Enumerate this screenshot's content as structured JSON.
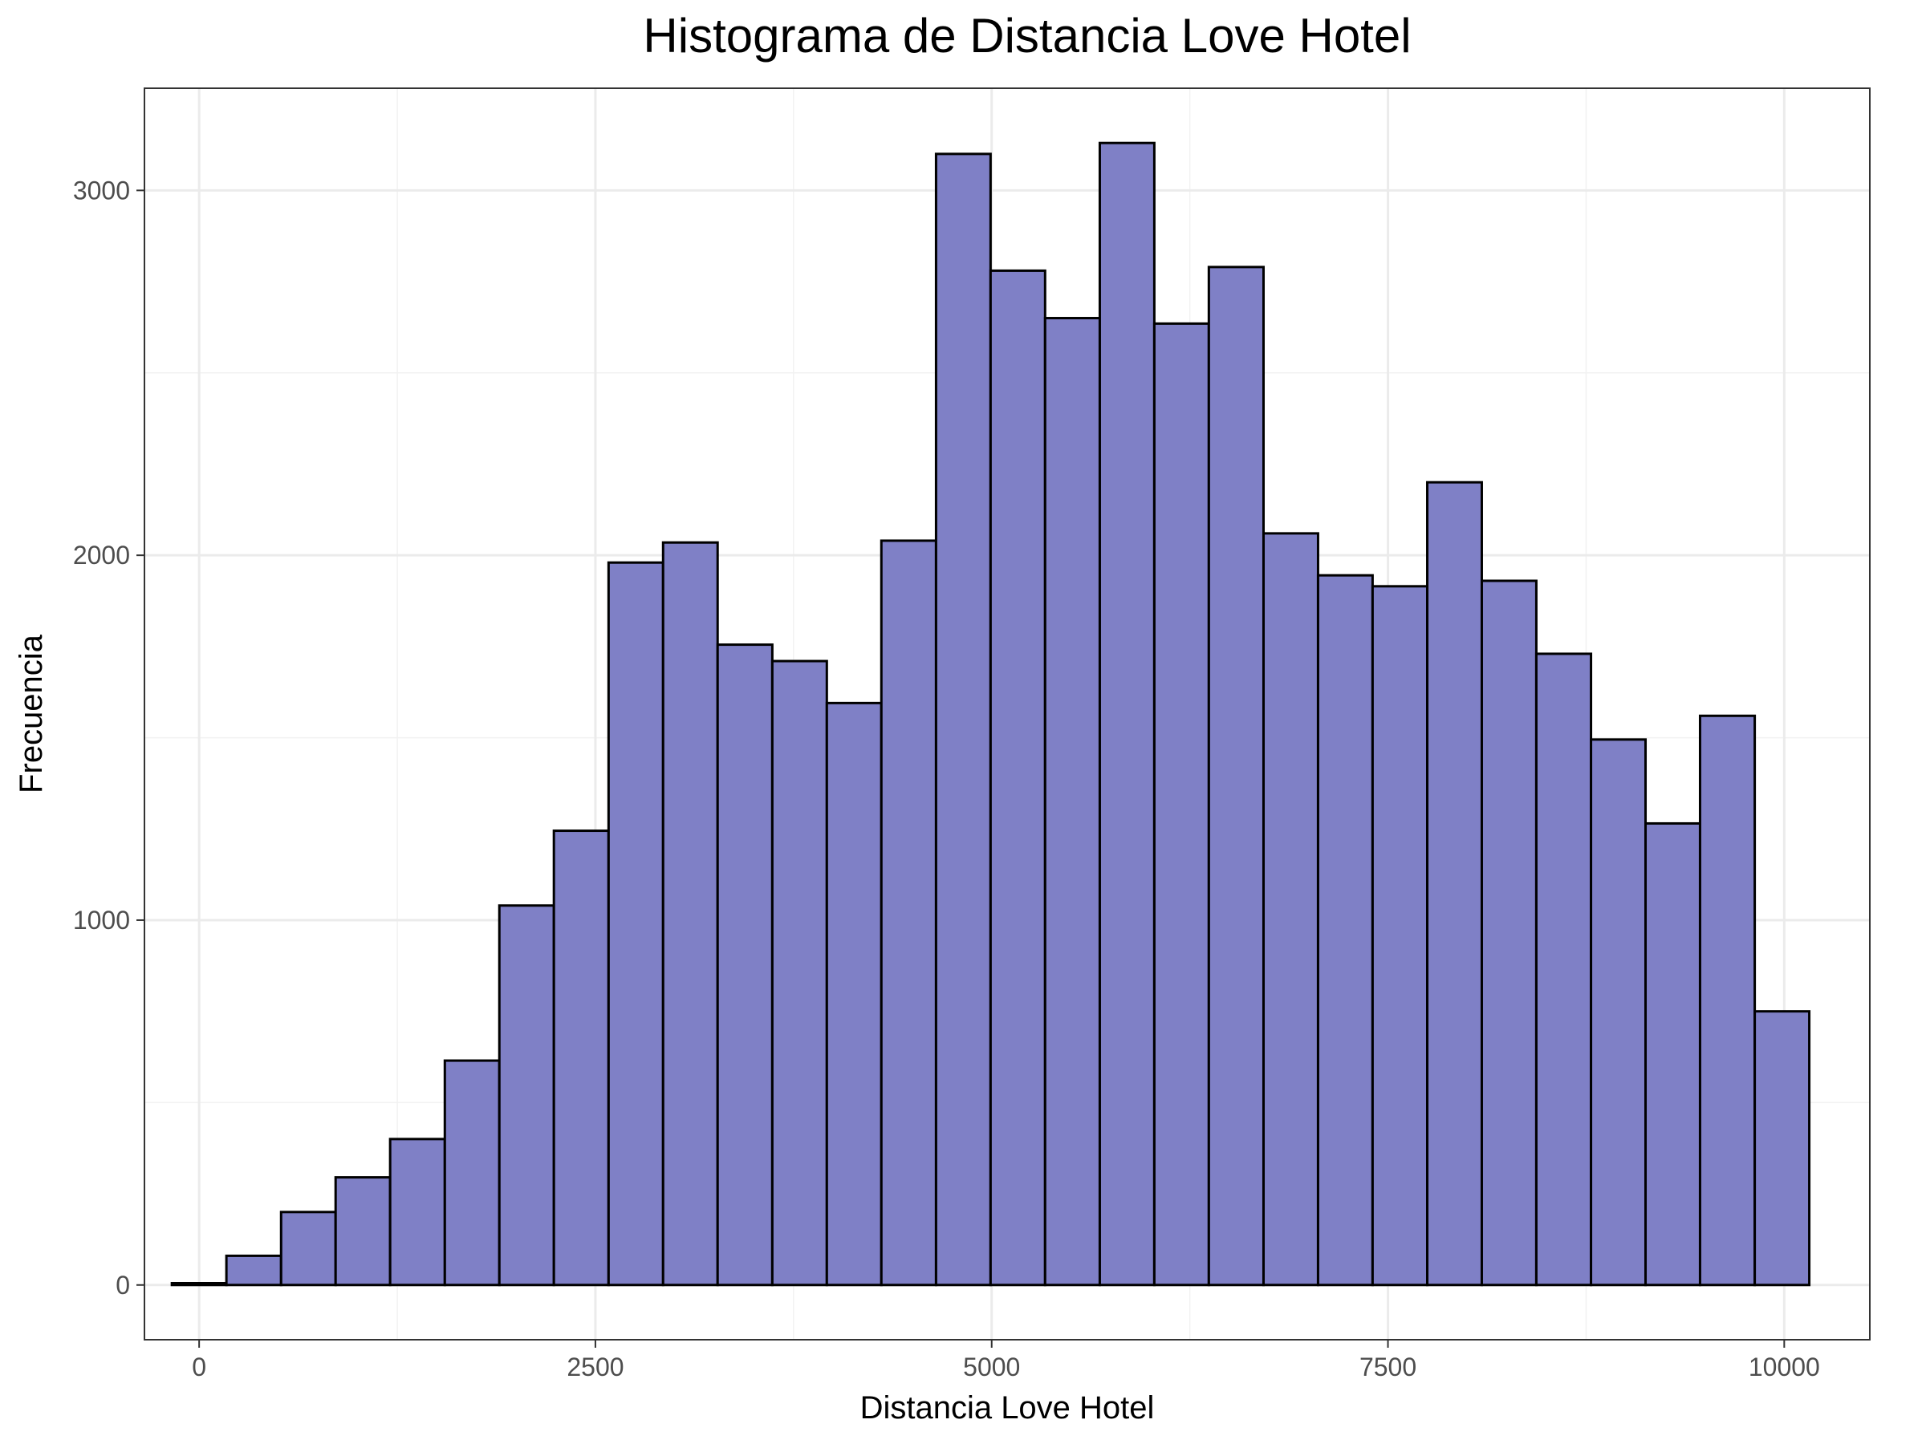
{
  "chart_data": {
    "type": "bar",
    "title": "Histograma de Distancia Love Hotel",
    "xlabel": "Distancia Love Hotel",
    "ylabel": "Frecuencia",
    "xlim": [
      -345,
      10540
    ],
    "ylim": [
      -150,
      3280
    ],
    "xticks": [
      0,
      2500,
      5000,
      7500,
      10000
    ],
    "xtick_labels": [
      "0",
      "2500",
      "5000",
      "7500",
      "10000"
    ],
    "yticks": [
      0,
      1000,
      2000,
      3000
    ],
    "ytick_labels": [
      "0",
      "1000",
      "2000",
      "3000"
    ],
    "grid": true,
    "bar_fill": "#7f80c6",
    "bar_edge": "#000000",
    "bins": [
      {
        "x0": -172,
        "x1": 172,
        "value": 5
      },
      {
        "x0": 172,
        "x1": 517,
        "value": 80
      },
      {
        "x0": 517,
        "x1": 861,
        "value": 200
      },
      {
        "x0": 861,
        "x1": 1205,
        "value": 295
      },
      {
        "x0": 1205,
        "x1": 1550,
        "value": 400
      },
      {
        "x0": 1550,
        "x1": 1894,
        "value": 615
      },
      {
        "x0": 1894,
        "x1": 2238,
        "value": 1040
      },
      {
        "x0": 2238,
        "x1": 2583,
        "value": 1245
      },
      {
        "x0": 2583,
        "x1": 2927,
        "value": 1980
      },
      {
        "x0": 2927,
        "x1": 3271,
        "value": 2035
      },
      {
        "x0": 3271,
        "x1": 3616,
        "value": 1755
      },
      {
        "x0": 3616,
        "x1": 3960,
        "value": 1710
      },
      {
        "x0": 3960,
        "x1": 4304,
        "value": 1595
      },
      {
        "x0": 4304,
        "x1": 4649,
        "value": 2040
      },
      {
        "x0": 4649,
        "x1": 4993,
        "value": 3100
      },
      {
        "x0": 4993,
        "x1": 5337,
        "value": 2780
      },
      {
        "x0": 5337,
        "x1": 5682,
        "value": 2650
      },
      {
        "x0": 5682,
        "x1": 6026,
        "value": 3130
      },
      {
        "x0": 6026,
        "x1": 6370,
        "value": 2635
      },
      {
        "x0": 6370,
        "x1": 6715,
        "value": 2790
      },
      {
        "x0": 6715,
        "x1": 7059,
        "value": 2060
      },
      {
        "x0": 7059,
        "x1": 7403,
        "value": 1945
      },
      {
        "x0": 7403,
        "x1": 7748,
        "value": 1915
      },
      {
        "x0": 7748,
        "x1": 8092,
        "value": 2200
      },
      {
        "x0": 8092,
        "x1": 8436,
        "value": 1930
      },
      {
        "x0": 8436,
        "x1": 8781,
        "value": 1730
      },
      {
        "x0": 8781,
        "x1": 9125,
        "value": 1495
      },
      {
        "x0": 9125,
        "x1": 9469,
        "value": 1265
      },
      {
        "x0": 9469,
        "x1": 9814,
        "value": 1560
      },
      {
        "x0": 9814,
        "x1": 10158,
        "value": 750
      }
    ]
  }
}
